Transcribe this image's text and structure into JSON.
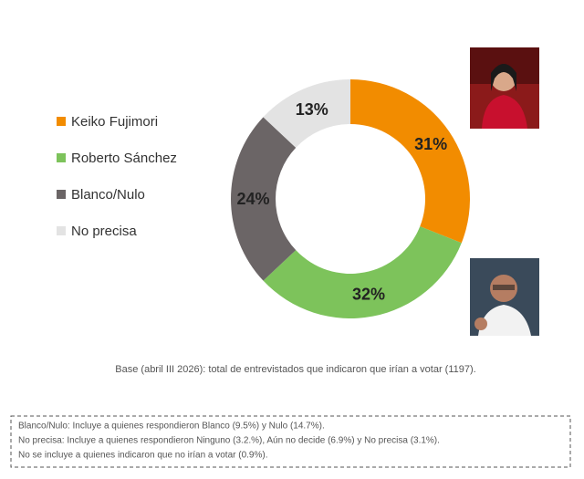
{
  "chart_data": {
    "type": "donut",
    "categories": [
      "Keiko Fujimori",
      "Roberto Sánchez",
      "Blanco/Nulo",
      "No precisa"
    ],
    "values": [
      31,
      32,
      24,
      13
    ],
    "value_labels": [
      "31%",
      "32%",
      "24%",
      "13%"
    ],
    "colors": [
      "#f28c00",
      "#7dc35b",
      "#6b6566",
      "#e3e3e3"
    ],
    "legend": "left",
    "caption": "Base (abril III 2026): total de entrevistados que indicaron que irían a votar (1197).",
    "notes": [
      "Blanco/Nulo: Incluye a quienes respondieron Blanco (9.5%) y Nulo (14.7%).",
      "No precisa: Incluye a quienes respondieron Ninguno (3.2.%), Aún no decide (6.9%) y No precisa (3.1%).",
      "No se incluye a quienes indicaron que no irían a votar (0.9%)."
    ]
  }
}
